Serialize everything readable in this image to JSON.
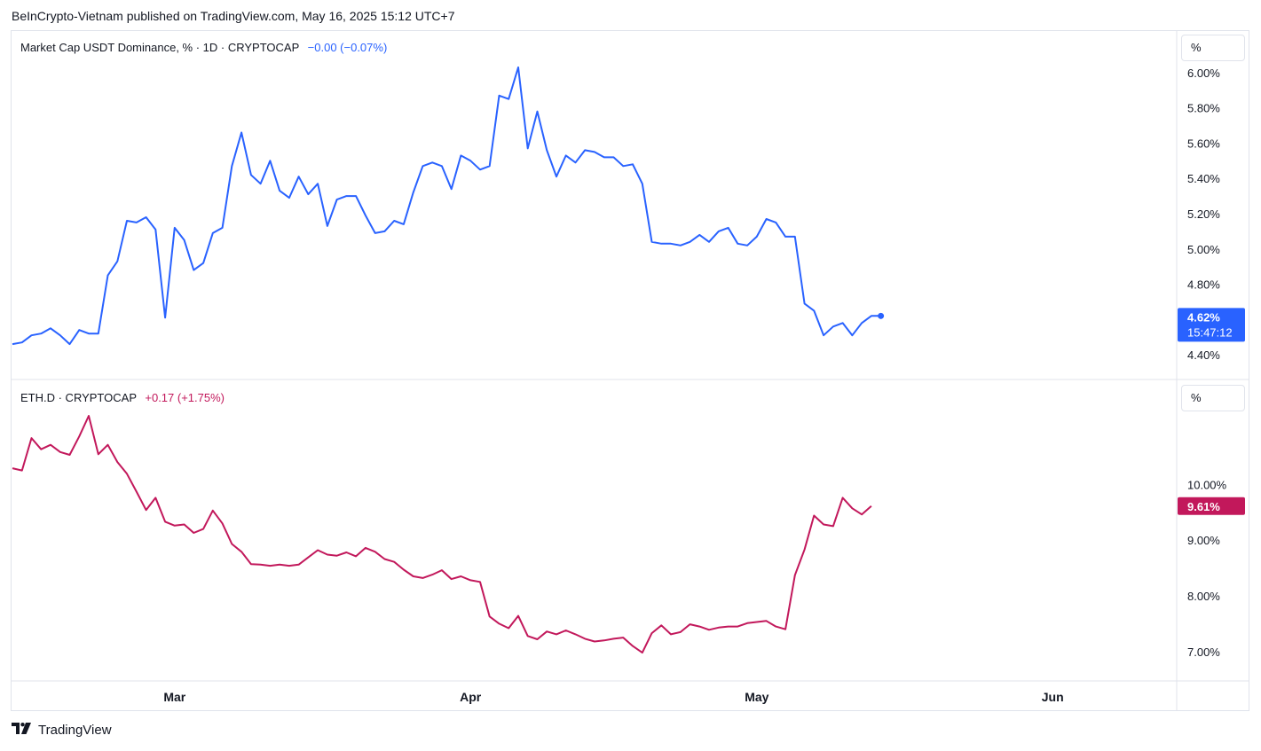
{
  "header": {
    "published": "BeInCrypto-Vietnam published on TradingView.com, May 16, 2025 15:12 UTC+7"
  },
  "top_pane": {
    "legend_symbol": "Market Cap USDT Dominance, % · 1D · CRYPTOCAP",
    "legend_change": "−0.00 (−0.07%)",
    "unit": "%",
    "last_value": "4.62%",
    "countdown": "15:47:12",
    "color": "#2962ff"
  },
  "bottom_pane": {
    "legend_symbol": "ETH.D · CRYPTOCAP",
    "legend_change": "+0.17 (+1.75%)",
    "unit": "%",
    "last_value": "9.61%",
    "color": "#c2185b"
  },
  "brand": {
    "name": "TradingView"
  },
  "chart_data": [
    {
      "type": "line",
      "title": "Market Cap USDT Dominance, % · 1D · CRYPTOCAP",
      "x_start": "2025-02-12",
      "x_end": "2025-05-16",
      "x_ticks": [
        "Mar",
        "Apr",
        "May",
        "Jun"
      ],
      "x_range": [
        "2025-02-12",
        "2025-06-14"
      ],
      "y_ticks": [
        "4.40%",
        "4.80%",
        "5.00%",
        "5.20%",
        "5.40%",
        "5.60%",
        "5.80%",
        "6.00%"
      ],
      "ylim": [
        4.33,
        6.07
      ],
      "series": [
        {
          "name": "Market Cap USDT Dominance",
          "values": [
            4.46,
            4.47,
            4.51,
            4.52,
            4.55,
            4.51,
            4.46,
            4.54,
            4.52,
            4.52,
            4.85,
            4.93,
            5.16,
            5.15,
            5.18,
            5.11,
            4.61,
            5.12,
            5.05,
            4.88,
            4.92,
            5.09,
            5.12,
            5.47,
            5.66,
            5.42,
            5.37,
            5.5,
            5.33,
            5.29,
            5.41,
            5.31,
            5.37,
            5.13,
            5.28,
            5.3,
            5.3,
            5.19,
            5.09,
            5.1,
            5.16,
            5.14,
            5.32,
            5.47,
            5.49,
            5.47,
            5.34,
            5.53,
            5.5,
            5.45,
            5.47,
            5.87,
            5.85,
            6.03,
            5.57,
            5.78,
            5.56,
            5.41,
            5.53,
            5.49,
            5.56,
            5.55,
            5.52,
            5.52,
            5.47,
            5.48,
            5.37,
            5.04,
            5.03,
            5.03,
            5.02,
            5.04,
            5.08,
            5.04,
            5.1,
            5.12,
            5.03,
            5.02,
            5.07,
            5.17,
            5.15,
            5.07,
            5.07,
            4.69,
            4.65,
            4.51,
            4.56,
            4.58,
            4.51,
            4.58,
            4.62,
            4.62
          ]
        }
      ]
    },
    {
      "type": "line",
      "title": "ETH.D · CRYPTOCAP",
      "x_start": "2025-02-12",
      "x_end": "2025-05-16",
      "x_ticks": [
        "Mar",
        "Apr",
        "May",
        "Jun"
      ],
      "x_range": [
        "2025-02-12",
        "2025-06-14"
      ],
      "y_ticks": [
        "7.00%",
        "8.00%",
        "9.00%",
        "10.00%"
      ],
      "ylim": [
        6.6,
        11.5
      ],
      "series": [
        {
          "name": "ETH.D",
          "values": [
            10.29,
            10.25,
            10.83,
            10.63,
            10.71,
            10.58,
            10.53,
            10.86,
            11.23,
            10.54,
            10.71,
            10.4,
            10.19,
            9.87,
            9.54,
            9.76,
            9.33,
            9.26,
            9.28,
            9.13,
            9.2,
            9.53,
            9.3,
            8.93,
            8.79,
            8.57,
            8.56,
            8.54,
            8.56,
            8.54,
            8.56,
            8.69,
            8.82,
            8.74,
            8.72,
            8.78,
            8.71,
            8.86,
            8.79,
            8.66,
            8.61,
            8.47,
            8.35,
            8.32,
            8.38,
            8.46,
            8.3,
            8.35,
            8.28,
            8.25,
            7.63,
            7.5,
            7.42,
            7.64,
            7.28,
            7.22,
            7.36,
            7.31,
            7.38,
            7.31,
            7.23,
            7.18,
            7.2,
            7.23,
            7.25,
            7.1,
            6.98,
            7.33,
            7.47,
            7.31,
            7.35,
            7.49,
            7.45,
            7.39,
            7.43,
            7.45,
            7.45,
            7.51,
            7.53,
            7.55,
            7.45,
            7.4,
            8.37,
            8.83,
            9.44,
            9.28,
            9.25,
            9.76,
            9.57,
            9.46,
            9.61
          ]
        }
      ]
    }
  ]
}
